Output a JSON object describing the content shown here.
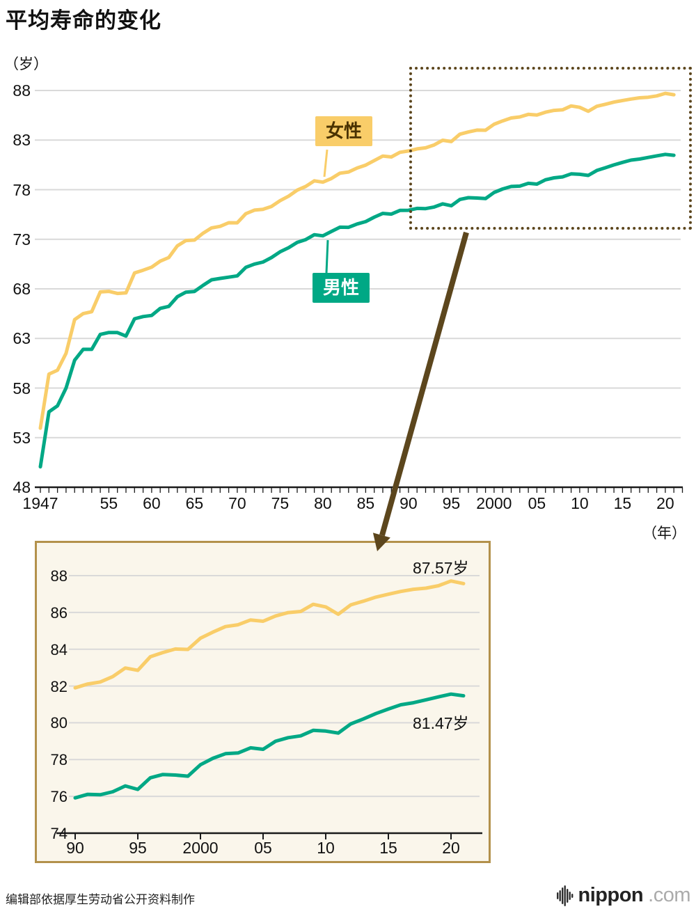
{
  "page": {
    "title": "平均寿命的变化",
    "source_note": "编辑部依据厚生劳动省公开资料制作",
    "logo_text": "nippon",
    "logo_suffix": ".com"
  },
  "labels": {
    "female": "女性",
    "male": "男性",
    "y_unit": "（岁）",
    "x_unit": "（年）"
  },
  "colors": {
    "female": "#F9CD69",
    "male": "#00A885",
    "female_label_text": "#4A3200",
    "male_label_text": "#FFFFFF",
    "zoom_brown": "#5C461D",
    "inset_border": "#B3914B",
    "inset_bg": "#FAF6EB",
    "grid": "#D9D9D9",
    "axis": "#1A1A1A",
    "logo_gray": "#ABABAB"
  },
  "chart_data": [
    {
      "id": "main",
      "type": "line",
      "title": "平均寿命的变化",
      "ylabel": "（岁）",
      "xlabel": "（年）",
      "ylim": [
        48,
        88
      ],
      "xlim": [
        1947,
        2022
      ],
      "grid": "horizontal",
      "y_ticks": [
        48,
        53,
        58,
        63,
        68,
        73,
        78,
        83,
        88
      ],
      "x_ticks": [
        {
          "label": "1947",
          "year": 1947
        },
        {
          "label": "55",
          "year": 1955
        },
        {
          "label": "60",
          "year": 1960
        },
        {
          "label": "65",
          "year": 1965
        },
        {
          "label": "70",
          "year": 1970
        },
        {
          "label": "75",
          "year": 1975
        },
        {
          "label": "80",
          "year": 1980
        },
        {
          "label": "85",
          "year": 1985
        },
        {
          "label": "90",
          "year": 1990
        },
        {
          "label": "95",
          "year": 1995
        },
        {
          "label": "2000",
          "year": 2000
        },
        {
          "label": "05",
          "year": 2005
        },
        {
          "label": "10",
          "year": 2010
        },
        {
          "label": "15",
          "year": 2015
        },
        {
          "label": "20",
          "year": 2020
        }
      ],
      "x": [
        1947,
        1948,
        1949,
        1950,
        1951,
        1952,
        1953,
        1954,
        1955,
        1956,
        1957,
        1958,
        1959,
        1960,
        1961,
        1962,
        1963,
        1964,
        1965,
        1966,
        1967,
        1968,
        1969,
        1970,
        1971,
        1972,
        1973,
        1974,
        1975,
        1976,
        1977,
        1978,
        1979,
        1980,
        1981,
        1982,
        1983,
        1984,
        1985,
        1986,
        1987,
        1988,
        1989,
        1990,
        1991,
        1992,
        1993,
        1994,
        1995,
        1996,
        1997,
        1998,
        1999,
        2000,
        2001,
        2002,
        2003,
        2004,
        2005,
        2006,
        2007,
        2008,
        2009,
        2010,
        2011,
        2012,
        2013,
        2014,
        2015,
        2016,
        2017,
        2018,
        2019,
        2020,
        2021
      ],
      "series": [
        {
          "name": "女性",
          "color": "#F9CD69",
          "values": [
            53.96,
            59.4,
            59.8,
            61.5,
            64.9,
            65.5,
            65.7,
            67.69,
            67.75,
            67.54,
            67.6,
            69.61,
            69.88,
            70.19,
            70.79,
            71.16,
            72.34,
            72.87,
            72.92,
            73.61,
            74.15,
            74.3,
            74.67,
            74.66,
            75.58,
            75.94,
            76.02,
            76.31,
            76.89,
            77.35,
            77.95,
            78.33,
            78.89,
            78.76,
            79.13,
            79.66,
            79.78,
            80.18,
            80.48,
            80.93,
            81.39,
            81.3,
            81.77,
            81.9,
            82.11,
            82.22,
            82.51,
            82.98,
            82.85,
            83.59,
            83.82,
            84.01,
            83.99,
            84.6,
            84.93,
            85.23,
            85.33,
            85.59,
            85.52,
            85.81,
            85.99,
            86.05,
            86.44,
            86.3,
            85.9,
            86.41,
            86.61,
            86.83,
            86.99,
            87.14,
            87.26,
            87.32,
            87.45,
            87.71,
            87.57
          ]
        },
        {
          "name": "男性",
          "color": "#00A885",
          "values": [
            50.06,
            55.6,
            56.2,
            58,
            60.8,
            61.9,
            61.9,
            63.41,
            63.6,
            63.59,
            63.24,
            64.98,
            65.21,
            65.32,
            66.03,
            66.23,
            67.21,
            67.67,
            67.74,
            68.35,
            68.91,
            69.05,
            69.18,
            69.31,
            70.17,
            70.5,
            70.7,
            71.16,
            71.73,
            72.15,
            72.69,
            72.97,
            73.46,
            73.35,
            73.79,
            74.22,
            74.2,
            74.54,
            74.78,
            75.23,
            75.61,
            75.54,
            75.91,
            75.92,
            76.11,
            76.09,
            76.25,
            76.57,
            76.38,
            77.01,
            77.19,
            77.16,
            77.1,
            77.72,
            78.07,
            78.32,
            78.36,
            78.64,
            78.56,
            79,
            79.19,
            79.29,
            79.59,
            79.55,
            79.44,
            79.94,
            80.21,
            80.5,
            80.75,
            80.98,
            81.09,
            81.25,
            81.41,
            81.56,
            81.47
          ]
        }
      ],
      "zoom_region": {
        "x_range": [
          1990,
          2022
        ],
        "y_range": [
          74,
          89
        ]
      }
    },
    {
      "id": "inset",
      "type": "line",
      "ylim": [
        74,
        88
      ],
      "xlim": [
        1989,
        2022
      ],
      "grid": "horizontal",
      "y_ticks": [
        74,
        76,
        78,
        80,
        82,
        84,
        86,
        88
      ],
      "x_ticks": [
        {
          "label": "90",
          "year": 1990
        },
        {
          "label": "95",
          "year": 1995
        },
        {
          "label": "2000",
          "year": 2000
        },
        {
          "label": "05",
          "year": 2005
        },
        {
          "label": "10",
          "year": 2010
        },
        {
          "label": "15",
          "year": 2015
        },
        {
          "label": "20",
          "year": 2020
        }
      ],
      "x": [
        1990,
        1991,
        1992,
        1993,
        1994,
        1995,
        1996,
        1997,
        1998,
        1999,
        2000,
        2001,
        2002,
        2003,
        2004,
        2005,
        2006,
        2007,
        2008,
        2009,
        2010,
        2011,
        2012,
        2013,
        2014,
        2015,
        2016,
        2017,
        2018,
        2019,
        2020,
        2021
      ],
      "series": [
        {
          "name": "女性",
          "color": "#F9CD69",
          "values": [
            81.9,
            82.11,
            82.22,
            82.51,
            82.98,
            82.85,
            83.59,
            83.82,
            84.01,
            83.99,
            84.6,
            84.93,
            85.23,
            85.33,
            85.59,
            85.52,
            85.81,
            85.99,
            86.05,
            86.44,
            86.3,
            85.9,
            86.41,
            86.61,
            86.83,
            86.99,
            87.14,
            87.26,
            87.32,
            87.45,
            87.71,
            87.57
          ]
        },
        {
          "name": "男性",
          "color": "#00A885",
          "values": [
            75.92,
            76.11,
            76.09,
            76.25,
            76.57,
            76.38,
            77.01,
            77.19,
            77.16,
            77.1,
            77.72,
            78.07,
            78.32,
            78.36,
            78.64,
            78.56,
            79,
            79.19,
            79.29,
            79.59,
            79.55,
            79.44,
            79.94,
            80.21,
            80.5,
            80.75,
            80.98,
            81.09,
            81.25,
            81.41,
            81.56,
            81.47
          ]
        }
      ],
      "annotations": [
        {
          "text": "87.57岁",
          "series": "女性",
          "year": 2021,
          "value": 87.57
        },
        {
          "text": "81.47岁",
          "series": "男性",
          "year": 2021,
          "value": 81.47
        }
      ]
    }
  ]
}
